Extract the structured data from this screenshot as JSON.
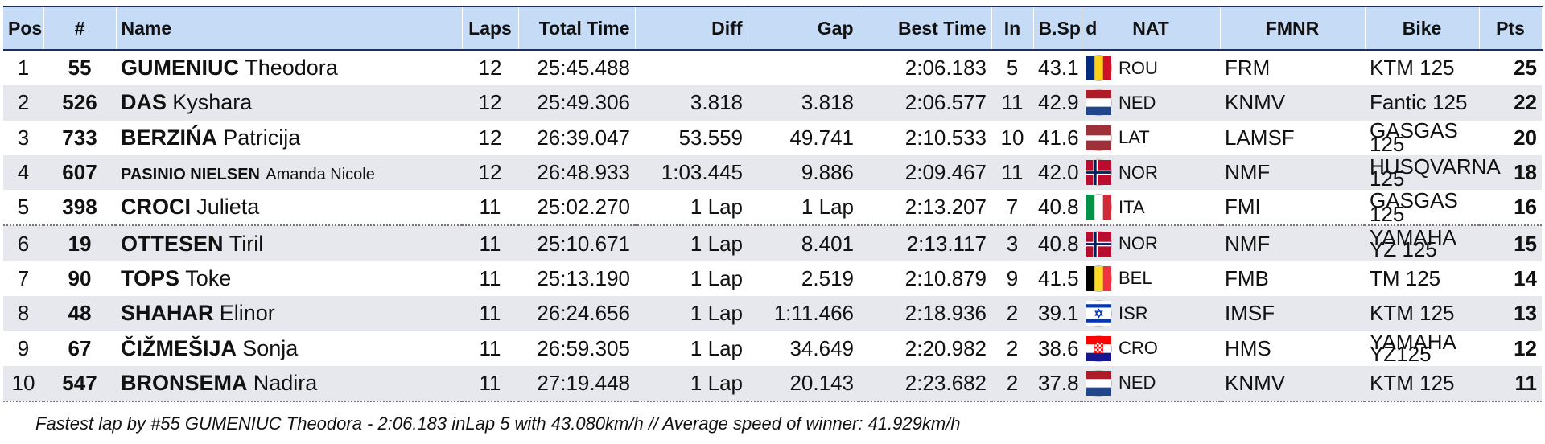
{
  "headers": {
    "pos": "Pos",
    "num": "#",
    "name": "Name",
    "laps": "Laps",
    "total_time": "Total Time",
    "diff": "Diff",
    "gap": "Gap",
    "best_time": "Best Time",
    "in": "In",
    "bspd": "B.Sp d",
    "nat": "NAT",
    "fmnr": "FMNR",
    "bike": "Bike",
    "pts": "Pts"
  },
  "rows": [
    {
      "pos": "1",
      "num": "55",
      "lastname": "GUMENIUC",
      "firstname": "Theodora",
      "laps": "12",
      "total": "25:45.488",
      "diff": "",
      "gap": "",
      "best": "2:06.183",
      "in": "5",
      "speed": "43.1",
      "nat": "ROU",
      "flag": "flag-romania",
      "fmnr": "FRM",
      "bike": "KTM 125",
      "pts": "25"
    },
    {
      "pos": "2",
      "num": "526",
      "lastname": "DAS",
      "firstname": "Kyshara",
      "laps": "12",
      "total": "25:49.306",
      "diff": "3.818",
      "gap": "3.818",
      "best": "2:06.577",
      "in": "11",
      "speed": "42.9",
      "nat": "NED",
      "flag": "flag-netherlands",
      "fmnr": "KNMV",
      "bike": "Fantic 125",
      "pts": "22"
    },
    {
      "pos": "3",
      "num": "733",
      "lastname": "BERZIŃA",
      "firstname": "Patricija",
      "laps": "12",
      "total": "26:39.047",
      "diff": "53.559",
      "gap": "49.741",
      "best": "2:10.533",
      "in": "10",
      "speed": "41.6",
      "nat": "LAT",
      "flag": "flag-latvia",
      "fmnr": "LAMSF",
      "bike": "GASGAS 125",
      "pts": "20"
    },
    {
      "pos": "4",
      "num": "607",
      "lastname": "PASINIO NIELSEN",
      "firstname": "Amanda Nicole",
      "laps": "12",
      "total": "26:48.933",
      "diff": "1:03.445",
      "gap": "9.886",
      "best": "2:09.467",
      "in": "11",
      "speed": "42.0",
      "nat": "NOR",
      "flag": "flag-norway",
      "fmnr": "NMF",
      "bike": "HUSQVARNA 125",
      "pts": "18"
    },
    {
      "pos": "5",
      "num": "398",
      "lastname": "CROCI",
      "firstname": "Julieta",
      "laps": "11",
      "total": "25:02.270",
      "diff": "1 Lap",
      "gap": "1 Lap",
      "best": "2:13.207",
      "in": "7",
      "speed": "40.8",
      "nat": "ITA",
      "flag": "flag-italy",
      "fmnr": "FMI",
      "bike": "GASGAS 125",
      "pts": "16"
    },
    {
      "pos": "6",
      "num": "19",
      "lastname": "OTTESEN",
      "firstname": "Tiril",
      "laps": "11",
      "total": "25:10.671",
      "diff": "1 Lap",
      "gap": "8.401",
      "best": "2:13.117",
      "in": "3",
      "speed": "40.8",
      "nat": "NOR",
      "flag": "flag-norway",
      "fmnr": "NMF",
      "bike": "YAMAHA YZ 125",
      "pts": "15"
    },
    {
      "pos": "7",
      "num": "90",
      "lastname": "TOPS",
      "firstname": "Toke",
      "laps": "11",
      "total": "25:13.190",
      "diff": "1 Lap",
      "gap": "2.519",
      "best": "2:10.879",
      "in": "9",
      "speed": "41.5",
      "nat": "BEL",
      "flag": "flag-belgium",
      "fmnr": "FMB",
      "bike": "TM 125",
      "pts": "14"
    },
    {
      "pos": "8",
      "num": "48",
      "lastname": "SHAHAR",
      "firstname": "Elinor",
      "laps": "11",
      "total": "26:24.656",
      "diff": "1 Lap",
      "gap": "1:11.466",
      "best": "2:18.936",
      "in": "2",
      "speed": "39.1",
      "nat": "ISR",
      "flag": "flag-israel",
      "fmnr": "IMSF",
      "bike": "KTM 125",
      "pts": "13"
    },
    {
      "pos": "9",
      "num": "67",
      "lastname": "ČIŽMEŠIJA",
      "firstname": "Sonja",
      "laps": "11",
      "total": "26:59.305",
      "diff": "1 Lap",
      "gap": "34.649",
      "best": "2:20.982",
      "in": "2",
      "speed": "38.6",
      "nat": "CRO",
      "flag": "flag-croatia",
      "fmnr": "HMS",
      "bike": "YAMAHA YZ125",
      "pts": "12"
    },
    {
      "pos": "10",
      "num": "547",
      "lastname": "BRONSEMA",
      "firstname": "Nadira",
      "laps": "11",
      "total": "27:19.448",
      "diff": "1 Lap",
      "gap": "20.143",
      "best": "2:23.682",
      "in": "2",
      "speed": "37.8",
      "nat": "NED",
      "flag": "flag-netherlands",
      "fmnr": "KNMV",
      "bike": "KTM 125",
      "pts": "11"
    }
  ],
  "footer": "Fastest lap by #55 GUMENIUC Theodora - 2:06.183 inLap 5 with 43.080km/h // Average speed of winner: 41.929km/h"
}
